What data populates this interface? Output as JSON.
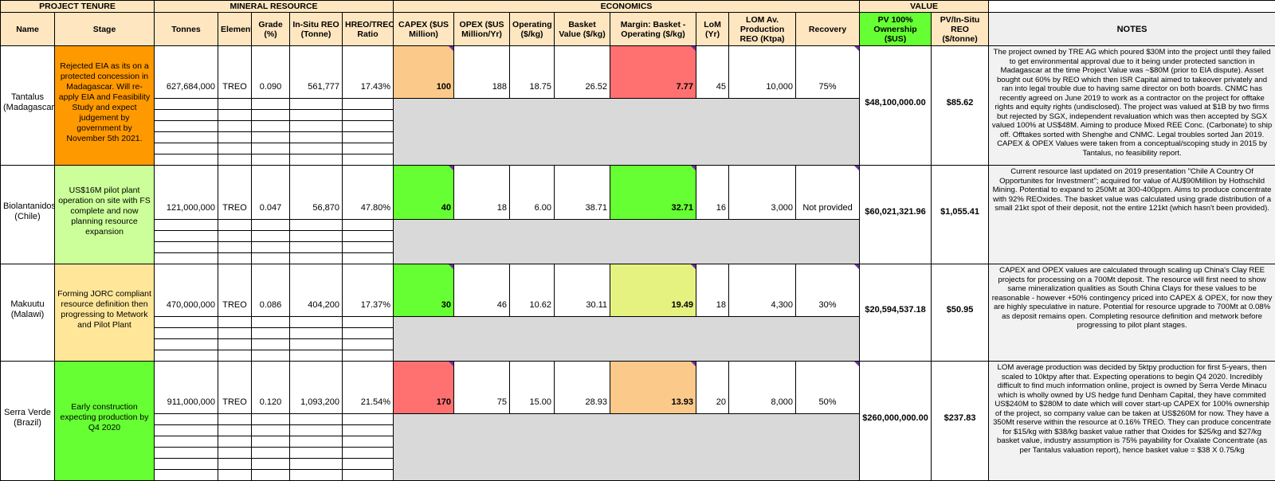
{
  "groups": {
    "project_tenure": "PROJECT TENURE",
    "mineral_resource": "MINERAL RESOURCE",
    "economics": "ECONOMICS",
    "value": "VALUE"
  },
  "headers": {
    "name": "Name",
    "stage": "Stage",
    "tonnes": "Tonnes",
    "element": "Element",
    "grade": "Grade (%)",
    "insitu": "In-Situ REO (Tonne)",
    "hreo": "HREO/TREO Ratio",
    "capex": "CAPEX ($US Million)",
    "opex": "OPEX ($US Million/Yr)",
    "operating": "Operating ($/kg)",
    "basket": "Basket Value ($/kg)",
    "margin": "Margin: Basket - Operating ($/kg)",
    "lom": "LoM (Yr)",
    "lom_prod": "LOM Av. Production REO (Ktpa)",
    "recovery": "Recovery",
    "pv": "PV 100% Ownership ($US)",
    "pv_insitu": "PV/In-Situ REO ($/tonne)",
    "notes": "NOTES"
  },
  "colors": {
    "orange": "#ff9900",
    "light_orange": "#fbc98a",
    "light_green": "#ccff99",
    "green": "#66ff33",
    "pale_yellow": "#ffe699",
    "red": "#ff7070",
    "yellow_green": "#e6f280",
    "grey": "#d9d9d9"
  },
  "projects": [
    {
      "name": "Tantalus (Madagascar)",
      "stage": "Rejected EIA as its on a protected concession in Madagascar. Will re-apply EIA and Feasibility Study and expect judgement by government by November 5th 2021.",
      "tonnes": "627,684,000",
      "element": "TREO",
      "grade": "0.090",
      "insitu": "561,777",
      "hreo": "17.43%",
      "capex": "100",
      "opex": "188",
      "operating": "18.75",
      "basket": "26.52",
      "margin": "7.77",
      "lom": "45",
      "lom_prod": "10,000",
      "recovery": "75%",
      "pv": "$48,100,000.00",
      "pv_insitu": "$85.62",
      "notes": "The project owned by TRE AG which poured $30M into the project until they failed to get environmental approval due to it being under protected sanction in Madagascar at the time Project Value was ~$80M (prior to EIA dispute). Asset bought out 60% by REO which then ISR Capital aimed to takeover privately and ran into legal trouble due to having same director on both boards. CNMC has recently agreed on June 2019 to work as a contractor on the project for offtake rights and equity rights (undisclosed). The project was valued at $1B by two firms but rejected by SGX, independent revaluation which was then accepted by SGX valued 100% at US$48M. Aiming to produce Mixed REE Conc. (Carbonate) to ship off. Offtakes sorted with Shenghe and CNMC. Legal troubles sorted Jan 2019. CAPEX & OPEX Values were taken from a conceptual/scoping study in 2015 by Tantalus, no feasibility report."
    },
    {
      "name": "Biolantanidos (Chile)",
      "stage": "US$16M pilot plant operation on site with FS complete and now planning resource expansion",
      "tonnes": "121,000,000",
      "element": "TREO",
      "grade": "0.047",
      "insitu": "56,870",
      "hreo": "47.80%",
      "capex": "40",
      "opex": "18",
      "operating": "6.00",
      "basket": "38.71",
      "margin": "32.71",
      "lom": "16",
      "lom_prod": "3,000",
      "recovery": "Not provided",
      "pv": "$60,021,321.96",
      "pv_insitu": "$1,055.41",
      "notes": "Current resource last updated on 2019 presentation \"Chile A Country Of Opportunites for Investment\"; acquired for value of AU$90Million by Hothschild Mining. Potential to expand to 250Mt at 300-400ppm. Aims to produce concentrate with 92% REOxides. The basket value was calculated using grade distribution of a small 21kt spot of their deposit, not the entire 121kt (which hasn't been provided)."
    },
    {
      "name": "Makuutu (Malawi)",
      "stage": "Forming JORC compliant resource definition then progressing to Metwork and Pilot Plant",
      "tonnes": "470,000,000",
      "element": "TREO",
      "grade": "0.086",
      "insitu": "404,200",
      "hreo": "17.37%",
      "capex": "30",
      "opex": "46",
      "operating": "10.62",
      "basket": "30.11",
      "margin": "19.49",
      "lom": "18",
      "lom_prod": "4,300",
      "recovery": "30%",
      "pv": "$20,594,537.18",
      "pv_insitu": "$50.95",
      "notes": "CAPEX and OPEX values are calculated through scaling up China's Clay REE projects for processing on a 700Mt deposit. The resource will first need to show same mineralization qualities as South China Clays for these values to be reasonable - however +50% contingency priced into CAPEX & OPEX, for now they are highly speculative in nature. Potential for resource upgrade to 700Mt at 0.08% as deposit remains open. Completing resource definition and metwork before progressing to pilot plant stages."
    },
    {
      "name": "Serra Verde (Brazil)",
      "stage": "Early construction expecting production by Q4 2020",
      "tonnes": "911,000,000",
      "element": "TREO",
      "grade": "0.120",
      "insitu": "1,093,200",
      "hreo": "21.54%",
      "capex": "170",
      "opex": "75",
      "operating": "15.00",
      "basket": "28.93",
      "margin": "13.93",
      "lom": "20",
      "lom_prod": "8,000",
      "recovery": "50%",
      "pv": "$260,000,000.00",
      "pv_insitu": "$237.83",
      "notes": "LOM average production was decided by 5ktpy production for first 5-years, then scaled to 10ktpy after that. Expecting operations to begin Q4 2020. Incredibly difficult to find much information online, project is owned by Serra Verde Minacu which is wholly owned by US hedge fund Denham Capital, they have commited US$240M to $280M to date which will cover start-up CAPEX for 100% ownership of the project, so company value can be taken at US$260M for now. They have a 350Mt reserve within the resource at 0.16% TREO. They can produce concentrate for $15/kg with $38/kg basket value rather that Oxides for $25/kg and $27/kg basket value, industry assumption is 75% payability for Oxalate Concentrate (as per Tantalus valuation report), hence basket value = $38 X 0.75/kg"
    }
  ]
}
